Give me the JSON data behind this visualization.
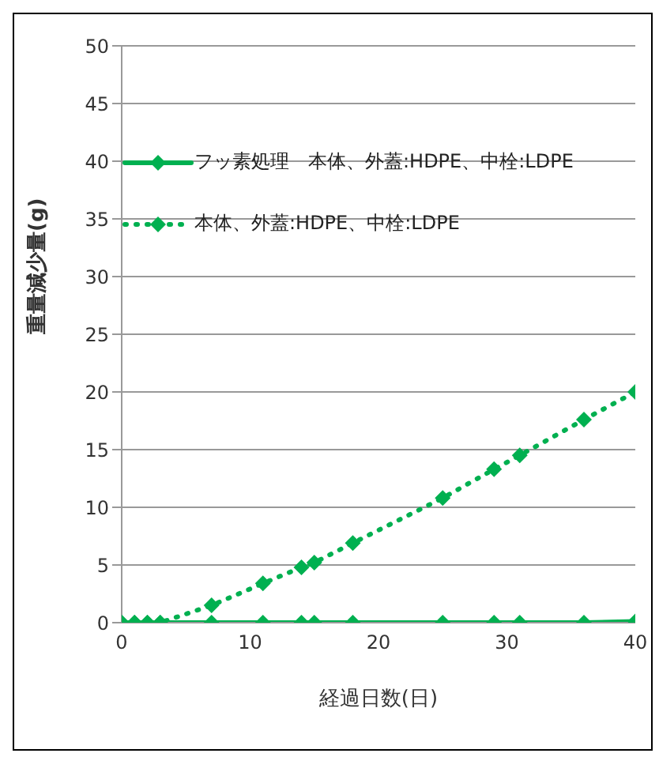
{
  "chart_data": {
    "type": "line",
    "xlabel": "経過日数(日)",
    "ylabel": "重量減少量(g)",
    "x": [
      0,
      1,
      2,
      3,
      7,
      11,
      14,
      15,
      18,
      25,
      29,
      31,
      36,
      40
    ],
    "series": [
      {
        "name": "フッ素処理　本体、外蓋:HDPE、中栓:LDPE",
        "color": "#00b050",
        "line_style": "solid",
        "values": [
          0,
          0,
          0,
          0,
          0,
          0,
          0,
          0,
          0,
          0,
          0,
          0,
          0,
          0.1
        ]
      },
      {
        "name": "本体、外蓋:HDPE、中栓:LDPE",
        "color": "#00b050",
        "line_style": "dotted",
        "values": [
          0,
          0,
          0,
          0,
          1.5,
          3.4,
          4.8,
          5.2,
          6.9,
          10.8,
          13.3,
          14.5,
          17.6,
          20
        ]
      }
    ],
    "xlim": [
      0,
      40
    ],
    "xticks": [
      0,
      10,
      20,
      30,
      40
    ],
    "ylim": [
      0,
      50
    ],
    "yticks": [
      0,
      5,
      10,
      15,
      20,
      25,
      30,
      35,
      40,
      45,
      50
    ],
    "grid": "y",
    "legend": "top left",
    "marker": "diamond"
  }
}
